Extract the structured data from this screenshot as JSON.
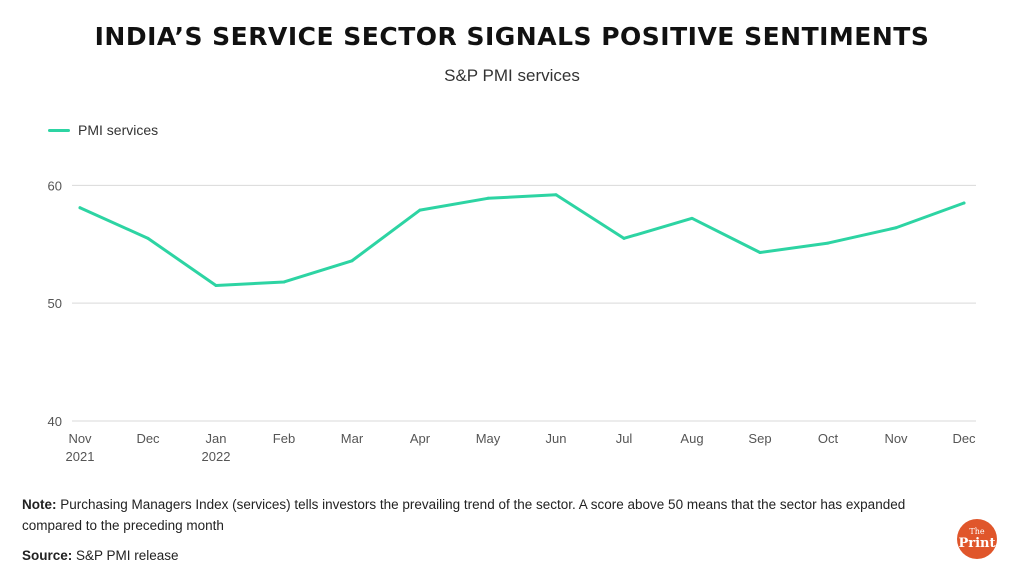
{
  "title": "INDIA’S SERVICE SECTOR SIGNALS POSITIVE SENTIMENTS",
  "subtitle": "S&P PMI services",
  "colors": {
    "series": "#2dd4a3",
    "grid": "#d9d9d9",
    "axis_text": "#555555",
    "logo": "#e0562b"
  },
  "chart_data": {
    "type": "line",
    "categories": [
      [
        "Nov",
        "2021"
      ],
      [
        "Dec",
        ""
      ],
      [
        "Jan",
        "2022"
      ],
      [
        "Feb",
        ""
      ],
      [
        "Mar",
        ""
      ],
      [
        "Apr",
        ""
      ],
      [
        "May",
        ""
      ],
      [
        "Jun",
        ""
      ],
      [
        "Jul",
        ""
      ],
      [
        "Aug",
        ""
      ],
      [
        "Sep",
        ""
      ],
      [
        "Oct",
        ""
      ],
      [
        "Nov",
        ""
      ],
      [
        "Dec",
        ""
      ]
    ],
    "series": [
      {
        "name": "PMI services",
        "values": [
          58.1,
          55.5,
          51.5,
          51.8,
          53.6,
          57.9,
          58.9,
          59.2,
          55.5,
          57.2,
          54.3,
          55.1,
          56.4,
          58.5
        ]
      }
    ],
    "yticks": [
      40,
      50,
      60
    ],
    "ylim": [
      40,
      63
    ],
    "grid": true,
    "legend_position": "top-left"
  },
  "note": {
    "label": "Note:",
    "text": " Purchasing Managers Index (services) tells investors the prevailing trend of the sector. A score above 50 means that the sector has expanded compared to the preceding month"
  },
  "source": {
    "label": "Source:",
    "text": " S&P PMI release"
  },
  "logo": {
    "top": "The",
    "bottom": "Print"
  }
}
